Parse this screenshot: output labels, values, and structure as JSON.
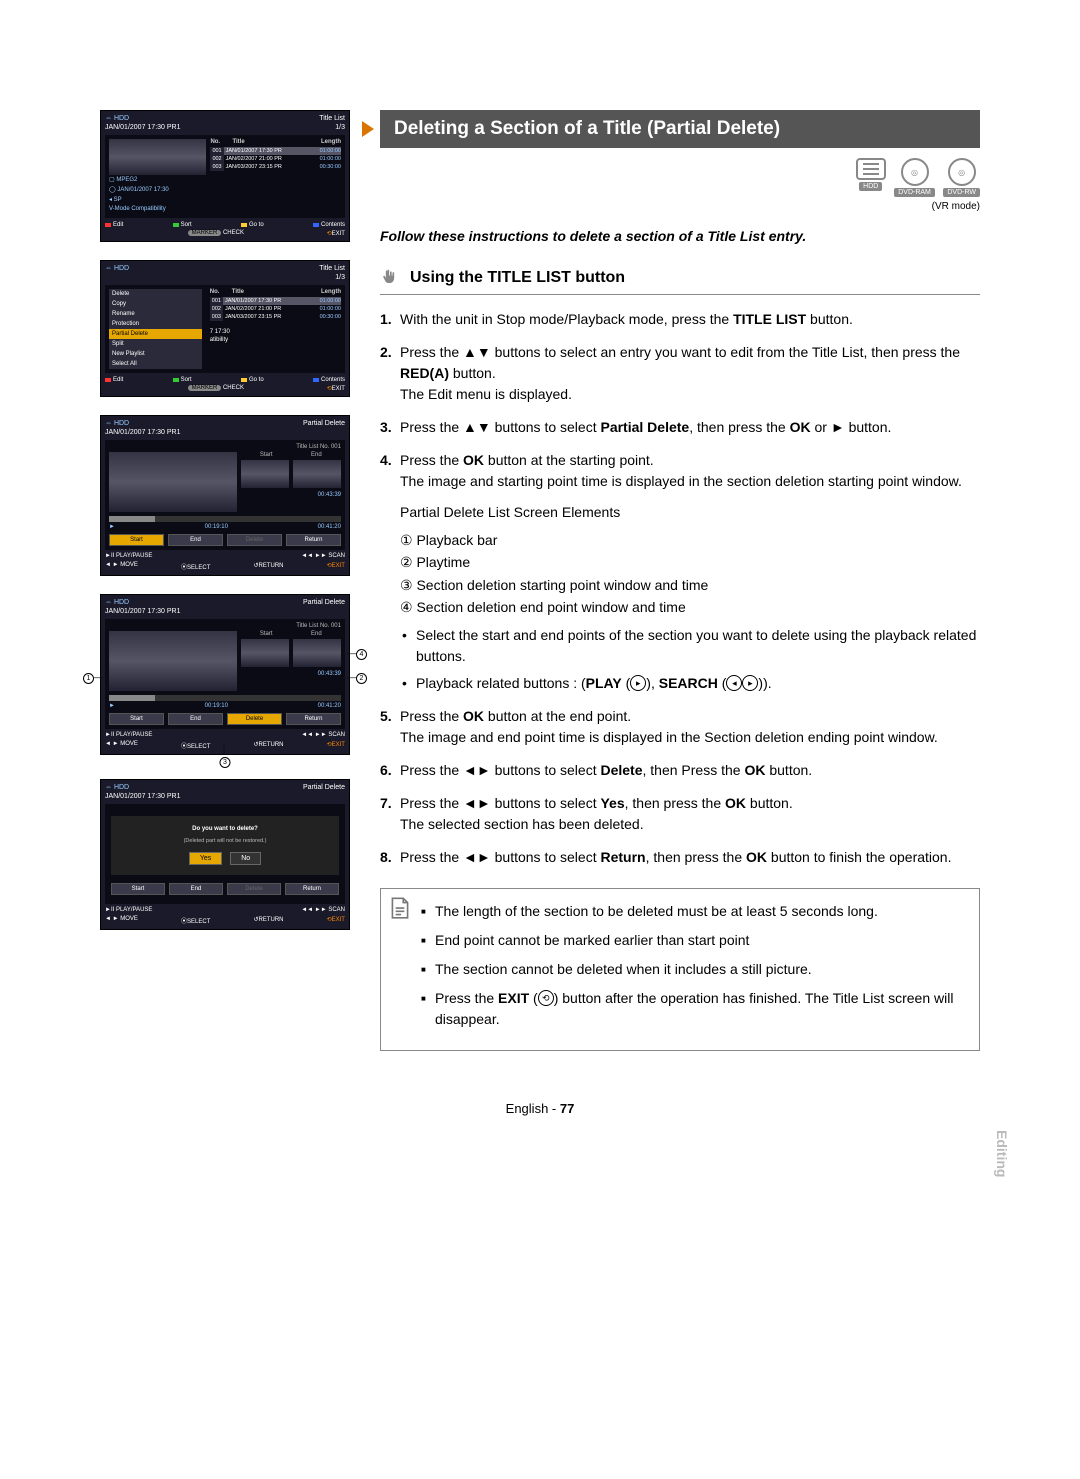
{
  "sideTab": "Editing",
  "footer": {
    "lang": "English",
    "page": "77"
  },
  "section": {
    "title": "Deleting a Section of a Title (Partial Delete)",
    "vrMode": "(VR mode)",
    "discs": [
      "HDD",
      "DVD-RAM",
      "DVD-RW"
    ],
    "follow": "Follow these instructions to delete a section of a Title List entry.",
    "subHeader": "Using the TITLE LIST button",
    "steps": {
      "s1a": "With the unit in Stop mode/Playback mode, press the ",
      "s1b": "TITLE LIST",
      "s1c": " button.",
      "s2a": "Press the ▲▼ buttons to select an entry you want to edit from the Title List, then press the ",
      "s2b": "RED(A)",
      "s2c": " button.",
      "s2d": "The Edit menu is displayed.",
      "s3a": "Press the ▲▼ buttons to select ",
      "s3b": "Partial Delete",
      "s3c": ", then press the ",
      "s3d": "OK",
      "s3e": " or ► button.",
      "s4a": "Press the ",
      "s4b": "OK",
      "s4c": " button at the starting point.",
      "s4d": "The image and starting point time is displayed in the section deletion starting point window.",
      "s4e": "Partial Delete List Screen Elements",
      "s4_e1": "① Playback bar",
      "s4_e2": "② Playtime",
      "s4_e3": "③ Section deletion starting point window and time",
      "s4_e4": "④ Section deletion end point window and time",
      "s4_b1": "Select the start and end points of the section you want to delete using the playback related buttons.",
      "s4_b2a": "Playback related buttons : (",
      "s4_b2b": "PLAY",
      "s4_b2c": " (",
      "s4_b2d": "), ",
      "s4_b2e": "SEARCH",
      "s4_b2f": " (",
      "s4_b2g": ")).",
      "s5a": "Press the ",
      "s5b": "OK",
      "s5c": " button at the end point.",
      "s5d": "The image and end point time is displayed in the Section deletion ending point window.",
      "s6a": "Press the ◄► buttons to select ",
      "s6b": "Delete",
      "s6c": ", then Press the ",
      "s6d": "OK",
      "s6e": " button.",
      "s7a": "Press the ◄► buttons to select ",
      "s7b": "Yes",
      "s7c": ", then press the ",
      "s7d": "OK",
      "s7e": " button.",
      "s7f": "The selected section has been deleted.",
      "s8a": "Press the ◄► buttons to select ",
      "s8b": "Return",
      "s8c": ", then press the ",
      "s8d": "OK",
      "s8e": " button to finish the operation."
    },
    "notes": {
      "n1": "The length of the section to be deleted must be at least 5 seconds long.",
      "n2": "End point cannot be marked earlier than start point",
      "n3": "The section cannot be deleted when it includes a still picture.",
      "n4a": "Press the ",
      "n4b": "EXIT",
      "n4c": " (",
      "n4d": ") button after the operation has finished. The Title List screen will disappear."
    }
  },
  "screens": {
    "titleList": {
      "hdd": "⇔ HDD",
      "title": "Title List",
      "date": "JAN/01/2007 17:30 PR1",
      "count": "1/3",
      "th_no": "No.",
      "th_title": "Title",
      "th_len": "Length",
      "rows": [
        {
          "no": "001",
          "title": "JAN/01/2007 17:30 PR",
          "len": "01:00:00",
          "sel": true
        },
        {
          "no": "002",
          "title": "JAN/02/2007 21:00 PR",
          "len": "01:00:00",
          "sel": false
        },
        {
          "no": "003",
          "title": "JAN/03/2007 23:15 PR",
          "len": "00:30:00",
          "sel": false
        }
      ],
      "meta1": "▢ MPEG2",
      "meta2": "◯ JAN/01/2007 17:30",
      "meta3": "◂ SP",
      "meta4": "V-Mode Compatibility",
      "foot_edit": "Edit",
      "foot_sort": "Sort",
      "foot_goto": "Go to",
      "foot_contents": "Contents",
      "foot_check": "CHECK",
      "foot_exit": "EXIT"
    },
    "editMenu": {
      "items": [
        "Delete",
        "Copy",
        "Rename",
        "Protection",
        "Partial Delete",
        "Split",
        "New Playlist",
        "Select All"
      ],
      "sel": 4,
      "timeLabel": "7 17:30",
      "pat": "atibility"
    },
    "partialDelete": {
      "hdd": "⇔ HDD",
      "title": "Partial Delete",
      "date": "JAN/01/2007 17:30 PR1",
      "sub": "Title List No. 001",
      "start": "Start",
      "end": "End",
      "time_top": "00:43:39",
      "bar_left": "►",
      "bar_time_l": "00:19:10",
      "bar_time_r": "00:41:20",
      "btns": [
        "Start",
        "End",
        "Delete",
        "Return"
      ],
      "sel": 0,
      "foot_pp": "►II PLAY/PAUSE",
      "foot_scan": "◄◄ ►► SCAN",
      "foot_move": "◄ ► MOVE",
      "foot_select": "SELECT",
      "foot_return": "RETURN",
      "foot_exit": "EXIT"
    },
    "confirm": {
      "msg": "Do you want to delete?",
      "sub": "(Deleted part will not be restored.)",
      "yes": "Yes",
      "no": "No"
    }
  }
}
